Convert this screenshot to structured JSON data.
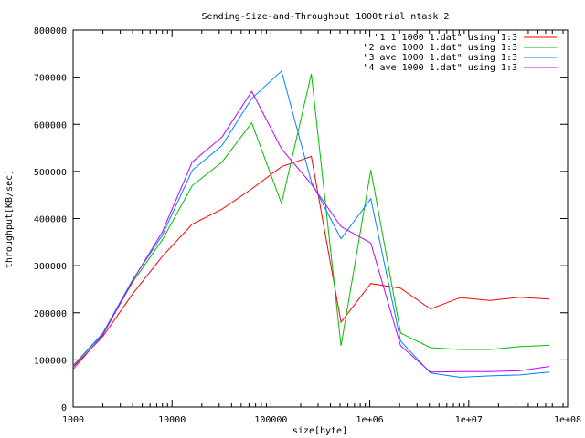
{
  "chart_data": {
    "type": "line",
    "title": "Sending-Size-and-Throughput 1000trial ntask 2",
    "xlabel": "size[byte]",
    "ylabel": "throughput[KB/sec]",
    "xscale": "log",
    "xlim": [
      1000,
      100000000
    ],
    "ylim": [
      0,
      800000
    ],
    "xticks": [
      {
        "value": 1000,
        "label": "1000"
      },
      {
        "value": 10000,
        "label": "10000"
      },
      {
        "value": 100000,
        "label": "100000"
      },
      {
        "value": 1000000,
        "label": "1e+06"
      },
      {
        "value": 10000000,
        "label": "1e+07"
      },
      {
        "value": 100000000,
        "label": "1e+08"
      }
    ],
    "yticks": [
      {
        "value": 0,
        "label": "0"
      },
      {
        "value": 100000,
        "label": "100000"
      },
      {
        "value": 200000,
        "label": "200000"
      },
      {
        "value": 300000,
        "label": "300000"
      },
      {
        "value": 400000,
        "label": "400000"
      },
      {
        "value": 500000,
        "label": "500000"
      },
      {
        "value": 600000,
        "label": "600000"
      },
      {
        "value": 700000,
        "label": "700000"
      },
      {
        "value": 800000,
        "label": "800000"
      }
    ],
    "grid": false,
    "legend_position": "top-right",
    "x": [
      1000,
      2000,
      4000,
      8000,
      16000,
      32000,
      64000,
      128000,
      256000,
      512000,
      1024000,
      2048000,
      4096000,
      8192000,
      16384000,
      32768000,
      65536000
    ],
    "series": [
      {
        "name": "\"1 1 1000 1.dat\" using 1:3",
        "color": "#ff0000",
        "values": [
          85000,
          150000,
          240000,
          320000,
          388000,
          420000,
          463000,
          510000,
          532000,
          180000,
          262000,
          252000,
          208000,
          232000,
          226000,
          233000,
          229000
        ]
      },
      {
        "name": "\"2 ave 1000 1.dat\" using 1:3",
        "color": "#00c000",
        "values": [
          88000,
          155000,
          265000,
          355000,
          470000,
          520000,
          603000,
          432000,
          707000,
          130000,
          503000,
          157000,
          126000,
          122000,
          122000,
          128000,
          131000
        ]
      },
      {
        "name": "\"3 ave 1000 1.dat\" using 1:3",
        "color": "#0080ff",
        "values": [
          88000,
          157000,
          270000,
          365000,
          502000,
          555000,
          655000,
          713000,
          478000,
          357000,
          442000,
          140000,
          72000,
          63000,
          66000,
          68000,
          74000
        ]
      },
      {
        "name": "\"4 ave 1000 1.dat\" using 1:3",
        "color": "#c000ff",
        "values": [
          80000,
          153000,
          268000,
          372000,
          520000,
          573000,
          670000,
          548000,
          473000,
          383000,
          348000,
          130000,
          74000,
          75000,
          75000,
          77000,
          86000
        ]
      }
    ]
  }
}
